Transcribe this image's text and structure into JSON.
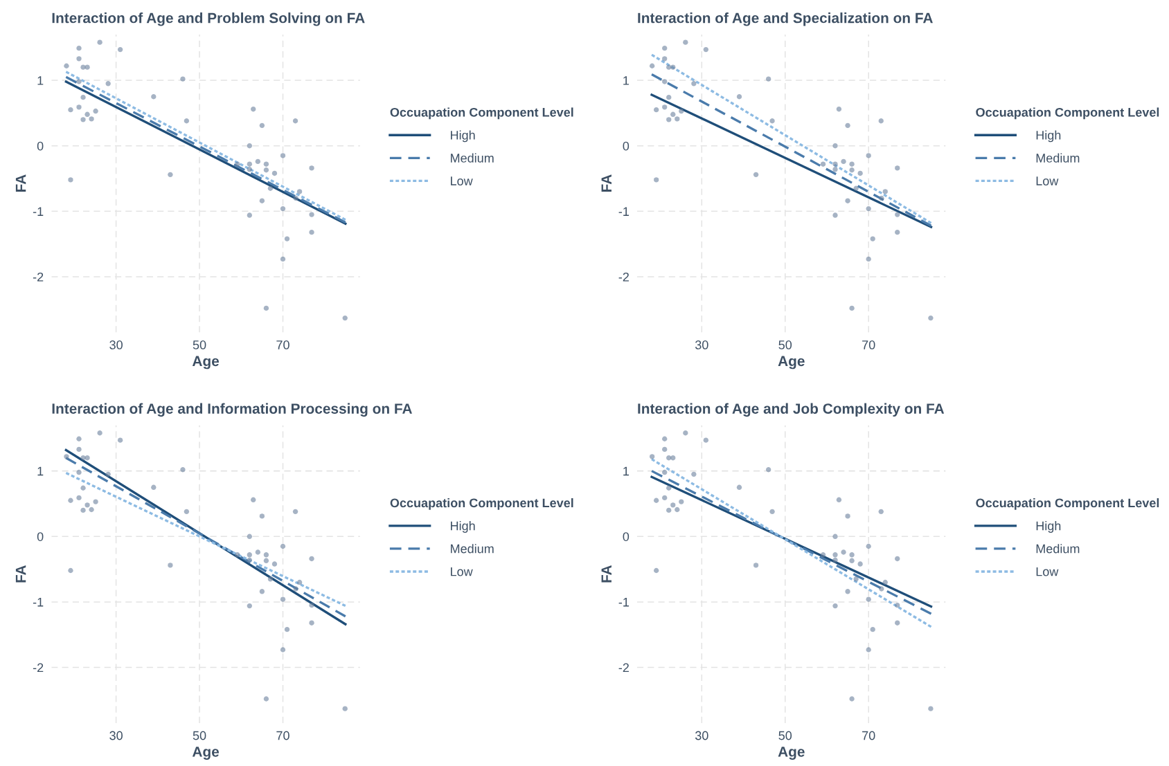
{
  "chart_data": [
    {
      "type": "scatter",
      "title": "Interaction of Age and Problem Solving on FA",
      "xlabel": "Age",
      "ylabel": "FA",
      "legend_title": "Occuapation Component Level",
      "legend": "right",
      "grid": true,
      "xlim": [
        14.5,
        88.5
      ],
      "ylim": [
        -2.85,
        1.7
      ],
      "xticks": [
        30,
        50,
        70
      ],
      "yticks": [
        -2,
        -1,
        0,
        1
      ],
      "series": [
        {
          "type": "scatter",
          "marker": "circle",
          "color": "#6a819c",
          "x": [
            18.1,
            21.1,
            21.1,
            26.1,
            31.0,
            22.1,
            23.1,
            21.1,
            28.1,
            22.1,
            19.1,
            21.1,
            25.1,
            23.1,
            22.1,
            24.1,
            19.1,
            39.0,
            46.0,
            46.9,
            43.0,
            62.9,
            65.0,
            62.0,
            62.0,
            64.0,
            66.0,
            66.0,
            59.1,
            70.0,
            68.0,
            67.0,
            73.0,
            76.9,
            74.0,
            65.0,
            70.0,
            62.0,
            76.9,
            76.9,
            71.0,
            70.0,
            66.0,
            84.9,
            62.0,
            73.1
          ],
          "values": [
            1.22,
            1.49,
            1.33,
            1.58,
            1.47,
            1.2,
            1.2,
            0.98,
            0.95,
            0.74,
            0.55,
            0.59,
            0.53,
            0.48,
            0.4,
            0.41,
            -0.52,
            0.75,
            1.02,
            0.38,
            -0.44,
            0.56,
            0.31,
            0.0,
            -0.28,
            -0.24,
            -0.28,
            -0.37,
            -0.28,
            -0.15,
            -0.42,
            -0.65,
            0.38,
            -0.34,
            -0.7,
            -0.84,
            -0.96,
            -1.06,
            -1.05,
            -1.32,
            -1.42,
            -1.73,
            -2.48,
            -2.63,
            -0.36,
            -0.8
          ]
        },
        {
          "type": "line",
          "name": "High",
          "color": "#1f4e79",
          "line_style": "solid",
          "x": [
            18,
            85
          ],
          "values": [
            0.98,
            -1.19
          ]
        },
        {
          "type": "line",
          "name": "Medium",
          "color": "#4a7bab",
          "line_style": "dashed",
          "x": [
            18,
            85
          ],
          "values": [
            1.05,
            -1.17
          ]
        },
        {
          "type": "line",
          "name": "Low",
          "color": "#8dbbe3",
          "line_style": "dotted",
          "x": [
            18,
            85
          ],
          "values": [
            1.13,
            -1.13
          ]
        }
      ]
    },
    {
      "type": "scatter",
      "title": "Interaction of Age and Specialization on FA",
      "xlabel": "Age",
      "ylabel": "FA",
      "legend_title": "Occuapation Component Level",
      "legend": "right",
      "grid": true,
      "xlim": [
        14.5,
        88.5
      ],
      "ylim": [
        -2.85,
        1.7
      ],
      "xticks": [
        30,
        50,
        70
      ],
      "yticks": [
        -2,
        -1,
        0,
        1
      ],
      "series": [
        {
          "type": "scatter",
          "marker": "circle",
          "color": "#6a819c",
          "x": [
            18.1,
            21.1,
            21.1,
            26.1,
            31.0,
            22.1,
            23.1,
            21.1,
            28.1,
            22.1,
            19.1,
            21.1,
            25.1,
            23.1,
            22.1,
            24.1,
            19.1,
            39.0,
            46.0,
            46.9,
            43.0,
            62.9,
            65.0,
            62.0,
            62.0,
            64.0,
            66.0,
            66.0,
            59.1,
            70.0,
            68.0,
            67.0,
            73.0,
            76.9,
            74.0,
            65.0,
            70.0,
            62.0,
            76.9,
            76.9,
            71.0,
            70.0,
            66.0,
            84.9,
            62.0,
            73.1
          ],
          "values": [
            1.22,
            1.49,
            1.33,
            1.58,
            1.47,
            1.2,
            1.2,
            0.98,
            0.95,
            0.74,
            0.55,
            0.59,
            0.53,
            0.48,
            0.4,
            0.41,
            -0.52,
            0.75,
            1.02,
            0.38,
            -0.44,
            0.56,
            0.31,
            0.0,
            -0.28,
            -0.24,
            -0.28,
            -0.37,
            -0.28,
            -0.15,
            -0.42,
            -0.65,
            0.38,
            -0.34,
            -0.7,
            -0.84,
            -0.96,
            -1.06,
            -1.05,
            -1.32,
            -1.42,
            -1.73,
            -2.48,
            -2.63,
            -0.36,
            -0.8
          ]
        },
        {
          "type": "line",
          "name": "High",
          "color": "#1f4e79",
          "line_style": "solid",
          "x": [
            18,
            85
          ],
          "values": [
            0.78,
            -1.24
          ]
        },
        {
          "type": "line",
          "name": "Medium",
          "color": "#4a7bab",
          "line_style": "dashed",
          "x": [
            18,
            85
          ],
          "values": [
            1.09,
            -1.22
          ]
        },
        {
          "type": "line",
          "name": "Low",
          "color": "#8dbbe3",
          "line_style": "dotted",
          "x": [
            18,
            85
          ],
          "values": [
            1.39,
            -1.18
          ]
        }
      ]
    },
    {
      "type": "scatter",
      "title": "Interaction of Age and Information Processing on FA",
      "xlabel": "Age",
      "ylabel": "FA",
      "legend_title": "Occuapation Component Level",
      "legend": "right",
      "grid": true,
      "xlim": [
        14.5,
        88.5
      ],
      "ylim": [
        -2.85,
        1.7
      ],
      "xticks": [
        30,
        50,
        70
      ],
      "yticks": [
        -2,
        -1,
        0,
        1
      ],
      "series": [
        {
          "type": "scatter",
          "marker": "circle",
          "color": "#6a819c",
          "x": [
            18.1,
            21.1,
            21.1,
            26.1,
            31.0,
            22.1,
            23.1,
            21.1,
            28.1,
            22.1,
            19.1,
            21.1,
            25.1,
            23.1,
            22.1,
            24.1,
            19.1,
            39.0,
            46.0,
            46.9,
            43.0,
            62.9,
            65.0,
            62.0,
            62.0,
            64.0,
            66.0,
            66.0,
            59.1,
            70.0,
            68.0,
            67.0,
            73.0,
            76.9,
            74.0,
            65.0,
            70.0,
            62.0,
            76.9,
            76.9,
            71.0,
            70.0,
            66.0,
            84.9,
            62.0,
            73.1
          ],
          "values": [
            1.22,
            1.49,
            1.33,
            1.58,
            1.47,
            1.2,
            1.2,
            0.98,
            0.95,
            0.74,
            0.55,
            0.59,
            0.53,
            0.48,
            0.4,
            0.41,
            -0.52,
            0.75,
            1.02,
            0.38,
            -0.44,
            0.56,
            0.31,
            0.0,
            -0.28,
            -0.24,
            -0.28,
            -0.37,
            -0.28,
            -0.15,
            -0.42,
            -0.65,
            0.38,
            -0.34,
            -0.7,
            -0.84,
            -0.96,
            -1.06,
            -1.05,
            -1.32,
            -1.42,
            -1.73,
            -2.48,
            -2.63,
            -0.36,
            -0.8
          ]
        },
        {
          "type": "line",
          "name": "High",
          "color": "#1f4e79",
          "line_style": "solid",
          "x": [
            18,
            85
          ],
          "values": [
            1.32,
            -1.34
          ]
        },
        {
          "type": "line",
          "name": "Medium",
          "color": "#4a7bab",
          "line_style": "dashed",
          "x": [
            18,
            85
          ],
          "values": [
            1.2,
            -1.22
          ]
        },
        {
          "type": "line",
          "name": "Low",
          "color": "#8dbbe3",
          "line_style": "dotted",
          "x": [
            18,
            85
          ],
          "values": [
            0.97,
            -1.06
          ]
        }
      ]
    },
    {
      "type": "scatter",
      "title": "Interaction of Age and Job Complexity on FA",
      "xlabel": "Age",
      "ylabel": "FA",
      "legend_title": "Occuapation Component Level",
      "legend": "right",
      "grid": true,
      "xlim": [
        14.5,
        88.5
      ],
      "ylim": [
        -2.85,
        1.7
      ],
      "xticks": [
        30,
        50,
        70
      ],
      "yticks": [
        -2,
        -1,
        0,
        1
      ],
      "series": [
        {
          "type": "scatter",
          "marker": "circle",
          "color": "#6a819c",
          "x": [
            18.1,
            21.1,
            21.1,
            26.1,
            31.0,
            22.1,
            23.1,
            21.1,
            28.1,
            22.1,
            19.1,
            21.1,
            25.1,
            23.1,
            22.1,
            24.1,
            19.1,
            39.0,
            46.0,
            46.9,
            43.0,
            62.9,
            65.0,
            62.0,
            62.0,
            64.0,
            66.0,
            66.0,
            59.1,
            70.0,
            68.0,
            67.0,
            73.0,
            76.9,
            74.0,
            65.0,
            70.0,
            62.0,
            76.9,
            76.9,
            71.0,
            70.0,
            66.0,
            84.9,
            62.0,
            73.1
          ],
          "values": [
            1.22,
            1.49,
            1.33,
            1.58,
            1.47,
            1.2,
            1.2,
            0.98,
            0.95,
            0.74,
            0.55,
            0.59,
            0.53,
            0.48,
            0.4,
            0.41,
            -0.52,
            0.75,
            1.02,
            0.38,
            -0.44,
            0.56,
            0.31,
            0.0,
            -0.28,
            -0.24,
            -0.28,
            -0.37,
            -0.28,
            -0.15,
            -0.42,
            -0.65,
            0.38,
            -0.34,
            -0.7,
            -0.84,
            -0.96,
            -1.06,
            -1.05,
            -1.32,
            -1.42,
            -1.73,
            -2.48,
            -2.63,
            -0.36,
            -0.8
          ]
        },
        {
          "type": "line",
          "name": "High",
          "color": "#1f4e79",
          "line_style": "solid",
          "x": [
            18,
            85
          ],
          "values": [
            0.91,
            -1.07
          ]
        },
        {
          "type": "line",
          "name": "Medium",
          "color": "#4a7bab",
          "line_style": "dashed",
          "x": [
            18,
            85
          ],
          "values": [
            1.0,
            -1.18
          ]
        },
        {
          "type": "line",
          "name": "Low",
          "color": "#8dbbe3",
          "line_style": "dotted",
          "x": [
            18,
            85
          ],
          "values": [
            1.18,
            -1.38
          ]
        }
      ]
    }
  ]
}
